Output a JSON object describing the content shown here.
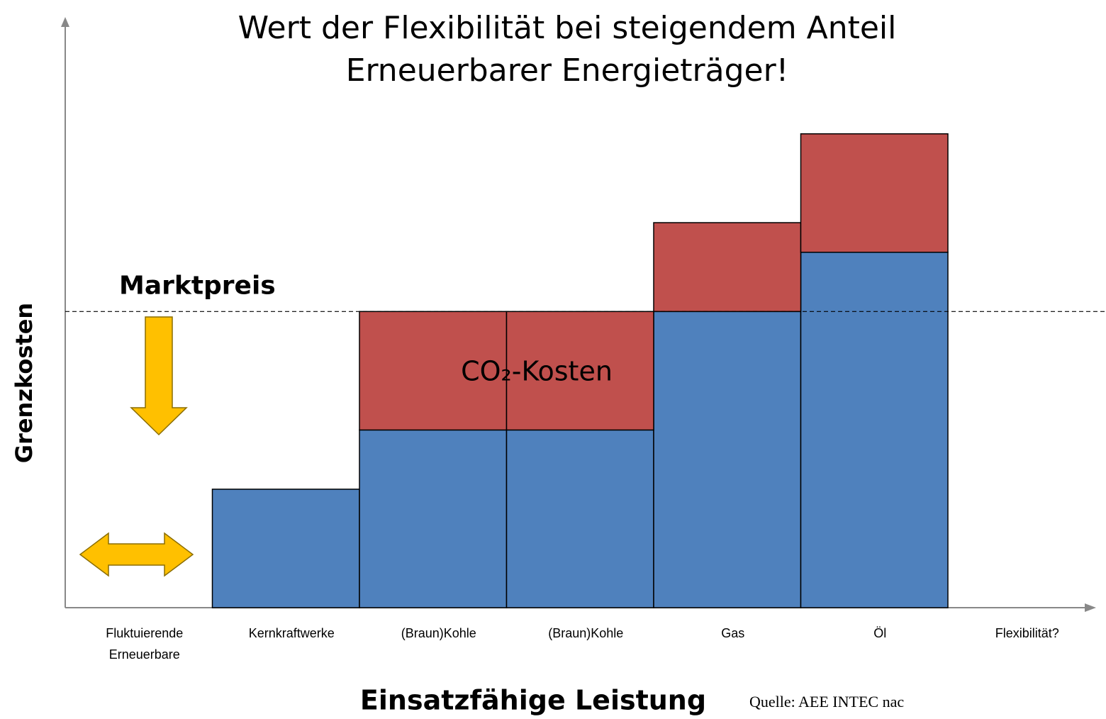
{
  "chart_data": {
    "type": "bar",
    "title": [
      "Wert der Flexibilität bei steigendem Anteil",
      "Erneuerbarer Energieträger!"
    ],
    "x_label": "Einsatzfähige Leistung",
    "y_label": "Grenzkosten",
    "categories": [
      "Fluktuierende Erneuerbare",
      "Kernkraftwerke",
      "(Braun)Kohle",
      "(Braun)Kohle",
      "Gas",
      "Öl",
      "Flexibilität?"
    ],
    "series": [
      {
        "color": "#4f81bd",
        "values": [
          null,
          2.0,
          3.0,
          3.0,
          5.0,
          6.0,
          null
        ]
      },
      {
        "color": "#c0504d",
        "values": [
          null,
          null,
          2.0,
          2.0,
          1.5,
          2.0,
          null
        ]
      }
    ],
    "ylim": [
      0,
      9.9
    ],
    "reference_line": {
      "label": "Marktpreis",
      "value": 5.0
    },
    "annotation": "CO₂-Kosten",
    "source": "Quelle: AEE INTEC nac"
  }
}
